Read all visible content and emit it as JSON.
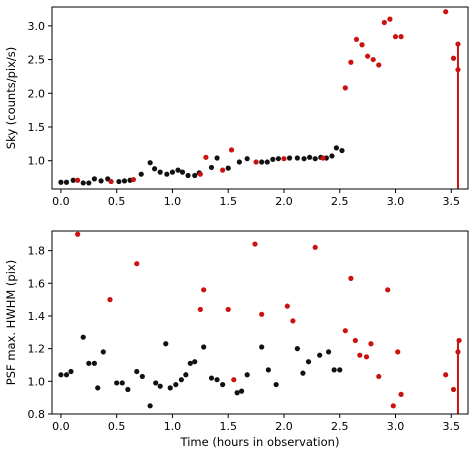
{
  "colors": {
    "black_points": "#111111",
    "red_points": "#cc1111"
  },
  "chart_data": [
    {
      "type": "scatter",
      "title": "",
      "xlabel": "",
      "ylabel": "Sky (counts/pix/s)",
      "xlim": [
        -0.08,
        3.65
      ],
      "ylim": [
        0.58,
        3.28
      ],
      "xticks": [
        "0.0",
        "0.5",
        "1.0",
        "1.5",
        "2.0",
        "2.5",
        "3.0",
        "3.5"
      ],
      "yticks": [
        "1.0",
        "1.5",
        "2.0",
        "2.5",
        "3.0"
      ],
      "grid": false,
      "series": [
        {
          "color": "black",
          "x": [
            0.0,
            0.05,
            0.11,
            0.2,
            0.25,
            0.3,
            0.36,
            0.42,
            0.52,
            0.57,
            0.62,
            0.72,
            0.8,
            0.84,
            0.89,
            0.95,
            1.0,
            1.05,
            1.09,
            1.14,
            1.2,
            1.24,
            1.35,
            1.4,
            1.5,
            1.6,
            1.67,
            1.8,
            1.85,
            1.9,
            1.95,
            2.05,
            2.12,
            2.18,
            2.23,
            2.28,
            2.33,
            2.38,
            2.43,
            2.47,
            2.52
          ],
          "y": [
            0.68,
            0.68,
            0.71,
            0.67,
            0.67,
            0.73,
            0.7,
            0.73,
            0.69,
            0.7,
            0.71,
            0.8,
            0.97,
            0.88,
            0.83,
            0.8,
            0.83,
            0.86,
            0.83,
            0.78,
            0.78,
            0.82,
            0.9,
            1.04,
            0.89,
            0.98,
            1.03,
            0.98,
            0.98,
            1.02,
            1.03,
            1.04,
            1.04,
            1.03,
            1.05,
            1.03,
            1.05,
            1.04,
            1.07,
            1.19,
            1.15
          ]
        },
        {
          "color": "red",
          "x": [
            0.15,
            0.45,
            0.65,
            1.25,
            1.3,
            1.45,
            1.53,
            1.75,
            2.0,
            2.35,
            2.55,
            2.6,
            2.65,
            2.7,
            2.75,
            2.8,
            2.85,
            2.9,
            2.95,
            3.0,
            3.05,
            3.45,
            3.52,
            3.56,
            3.56
          ],
          "y": [
            0.71,
            0.69,
            0.72,
            0.8,
            1.05,
            0.86,
            1.16,
            0.98,
            1.03,
            1.04,
            2.08,
            2.46,
            2.8,
            2.72,
            2.55,
            2.5,
            2.42,
            3.05,
            3.1,
            2.84,
            2.84,
            3.21,
            2.52,
            2.73,
            2.35
          ]
        }
      ],
      "vlines": [
        {
          "x": 3.56,
          "y0": 0.58,
          "y1": 2.73,
          "color": "red"
        }
      ]
    },
    {
      "type": "scatter",
      "title": "",
      "xlabel": "Time (hours in observation)",
      "ylabel": "PSF max. HWHM (pix)",
      "xlim": [
        -0.08,
        3.65
      ],
      "ylim": [
        0.8,
        1.92
      ],
      "xticks": [
        "0.0",
        "0.5",
        "1.0",
        "1.5",
        "2.0",
        "2.5",
        "3.0",
        "3.5"
      ],
      "yticks": [
        "0.8",
        "1.0",
        "1.2",
        "1.4",
        "1.6",
        "1.8"
      ],
      "grid": false,
      "series": [
        {
          "color": "black",
          "x": [
            0.0,
            0.05,
            0.09,
            0.2,
            0.25,
            0.3,
            0.33,
            0.38,
            0.5,
            0.55,
            0.6,
            0.68,
            0.73,
            0.8,
            0.85,
            0.89,
            0.94,
            0.98,
            1.03,
            1.08,
            1.12,
            1.16,
            1.2,
            1.28,
            1.35,
            1.4,
            1.45,
            1.58,
            1.62,
            1.67,
            1.8,
            1.86,
            1.93,
            2.12,
            2.17,
            2.22,
            2.32,
            2.4,
            2.45,
            2.5
          ],
          "y": [
            1.04,
            1.04,
            1.06,
            1.27,
            1.11,
            1.11,
            0.96,
            1.18,
            0.99,
            0.99,
            0.95,
            1.06,
            1.03,
            0.85,
            0.99,
            0.97,
            1.23,
            0.96,
            0.98,
            1.01,
            1.04,
            1.11,
            1.12,
            1.21,
            1.02,
            1.01,
            0.98,
            0.93,
            0.94,
            1.04,
            1.21,
            1.07,
            0.98,
            1.2,
            1.05,
            1.12,
            1.16,
            1.18,
            1.07,
            1.07
          ]
        },
        {
          "color": "red",
          "x": [
            0.15,
            0.44,
            0.68,
            1.25,
            1.28,
            1.5,
            1.55,
            1.74,
            1.8,
            2.03,
            2.08,
            2.28,
            2.55,
            2.6,
            2.64,
            2.68,
            2.74,
            2.78,
            2.85,
            2.93,
            2.98,
            3.02,
            3.05,
            3.45,
            3.52,
            3.56,
            3.57
          ],
          "y": [
            1.9,
            1.5,
            1.72,
            1.44,
            1.56,
            1.44,
            1.01,
            1.84,
            1.41,
            1.46,
            1.37,
            1.82,
            1.31,
            1.63,
            1.25,
            1.16,
            1.15,
            1.23,
            1.03,
            1.56,
            0.85,
            1.18,
            0.92,
            1.04,
            0.95,
            1.18,
            1.25
          ]
        }
      ],
      "vlines": [
        {
          "x": 3.56,
          "y0": 0.8,
          "y1": 1.25,
          "color": "red"
        }
      ]
    }
  ]
}
